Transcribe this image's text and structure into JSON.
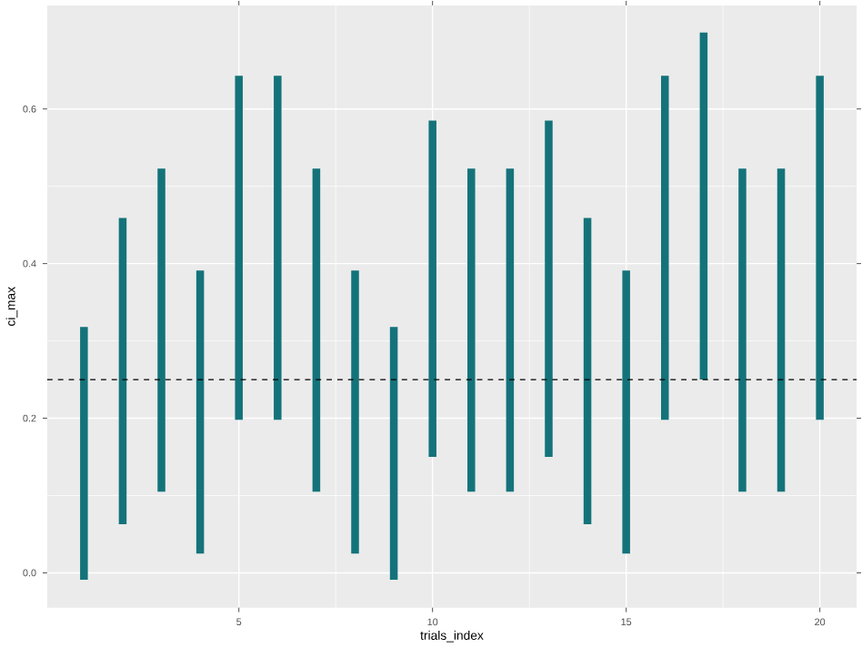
{
  "chart_data": {
    "type": "bar",
    "xlabel": "trials_index",
    "ylabel": "ci_max",
    "x": [
      1,
      2,
      3,
      4,
      5,
      6,
      7,
      8,
      9,
      10,
      11,
      12,
      13,
      14,
      15,
      16,
      17,
      18,
      19,
      20
    ],
    "base": [
      -0.009,
      0.063,
      0.105,
      0.025,
      0.198,
      0.198,
      0.105,
      0.025,
      -0.009,
      0.15,
      0.105,
      0.105,
      0.15,
      0.063,
      0.025,
      0.198,
      0.25,
      0.105,
      0.105,
      0.198
    ],
    "values": [
      0.327,
      0.396,
      0.418,
      0.366,
      0.445,
      0.445,
      0.418,
      0.366,
      0.327,
      0.435,
      0.418,
      0.418,
      0.435,
      0.396,
      0.366,
      0.445,
      0.449,
      0.418,
      0.418,
      0.445
    ],
    "color": "#14737a",
    "xlim": [
      0.05,
      20.95
    ],
    "ylim": [
      -0.045,
      0.734
    ],
    "xticks": [
      5,
      10,
      15,
      20
    ],
    "yticks": [
      {
        "value": 0,
        "label": "0.0"
      },
      0.2,
      0.4,
      0.6
    ],
    "ref_lines": [
      {
        "axis": "y",
        "value": 0.25,
        "color": "#000000",
        "line_style": "dashed"
      }
    ],
    "grid": true
  }
}
